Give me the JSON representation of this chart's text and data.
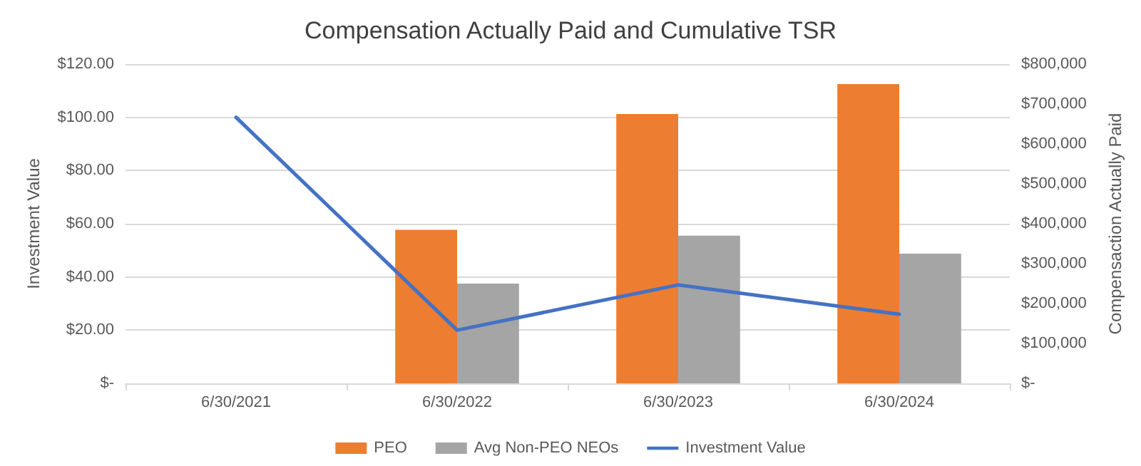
{
  "chart_data": {
    "type": "bar",
    "title": "Compensation Actually Paid and Cumulative TSR",
    "categories": [
      "6/30/2021",
      "6/30/2022",
      "6/30/2023",
      "6/30/2024"
    ],
    "series": [
      {
        "name": "PEO",
        "axis": "y2",
        "color": "#ed7d31",
        "values": [
          null,
          385000,
          675000,
          750000
        ]
      },
      {
        "name": "Avg Non-PEO NEOs",
        "axis": "y2",
        "color": "#a5a5a5",
        "values": [
          null,
          250000,
          370000,
          325000
        ]
      },
      {
        "name": "Investment Value",
        "type": "line",
        "color": "#4472c4",
        "values": [
          100,
          20,
          37,
          26
        ]
      }
    ],
    "ylabel": "Investment Value",
    "y2label": "Compensaction Actually Paid",
    "ylim": [
      0,
      120
    ],
    "yticks": [
      {
        "value": 0,
        "label": "$-"
      },
      {
        "value": 20,
        "label": "$20.00"
      },
      {
        "value": 40,
        "label": "$40.00"
      },
      {
        "value": 60,
        "label": "$60.00"
      },
      {
        "value": 80,
        "label": "$80.00"
      },
      {
        "value": 100,
        "label": "$100.00"
      },
      {
        "value": 120,
        "label": "$120.00"
      }
    ],
    "y2lim": [
      0,
      800000
    ],
    "y2ticks": [
      {
        "value": 0,
        "label": "$-"
      },
      {
        "value": 100000,
        "label": "$100,000"
      },
      {
        "value": 200000,
        "label": "$200,000"
      },
      {
        "value": 300000,
        "label": "$300,000"
      },
      {
        "value": 400000,
        "label": "$400,000"
      },
      {
        "value": 500000,
        "label": "$500,000"
      },
      {
        "value": 600000,
        "label": "$600,000"
      },
      {
        "value": 700000,
        "label": "$700,000"
      },
      {
        "value": 800000,
        "label": "$800,000"
      }
    ],
    "grid": "y",
    "legend": "bottom",
    "marker": "none"
  }
}
